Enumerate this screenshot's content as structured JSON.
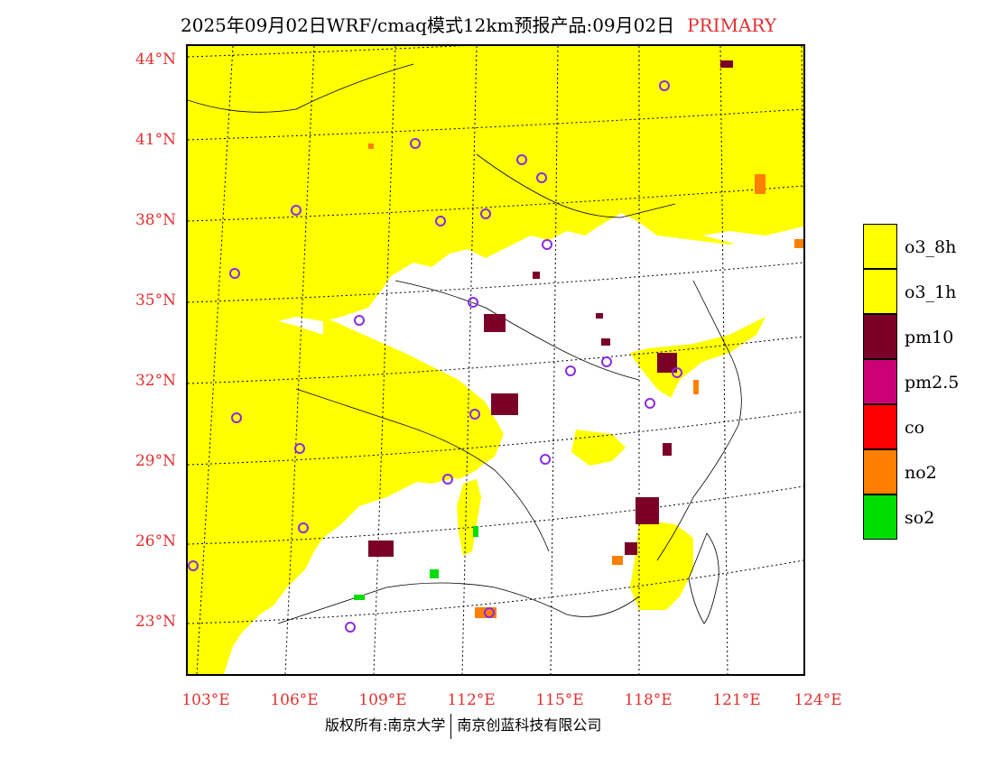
{
  "title": {
    "main": "2025年09月02日WRF/cmaq模式12km预报产品:09月02日",
    "tag": "PRIMARY"
  },
  "axes": {
    "y_labels": [
      "44°N",
      "41°N",
      "38°N",
      "35°N",
      "32°N",
      "29°N",
      "26°N",
      "23°N"
    ],
    "x_labels": [
      "103°E",
      "106°E",
      "109°E",
      "112°E",
      "115°E",
      "118°E",
      "121°E",
      "124°E"
    ]
  },
  "legend": [
    {
      "label": "o3_8h",
      "color": "#ffff00"
    },
    {
      "label": "o3_1h",
      "color": "#ffff00"
    },
    {
      "label": "pm10",
      "color": "#7a0028"
    },
    {
      "label": "pm2.5",
      "color": "#cc0077"
    },
    {
      "label": "co",
      "color": "#ff0000"
    },
    {
      "label": "no2",
      "color": "#ff7f00"
    },
    {
      "label": "so2",
      "color": "#00dd00"
    }
  ],
  "footer": {
    "left": "版权所有:南京大学",
    "right": "南京创蓝科技有限公司"
  },
  "colors": {
    "o3": "#ffff00",
    "pm10": "#7a0028",
    "no2": "#ff7f00",
    "so2": "#00dd00",
    "station_marker": "#8a2be2",
    "label_red": "#e03030"
  }
}
